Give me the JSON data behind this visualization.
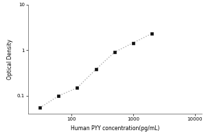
{
  "x_values": [
    31.25,
    62.5,
    125,
    250,
    500,
    1000,
    2000
  ],
  "y_values": [
    0.055,
    0.1,
    0.15,
    0.38,
    0.9,
    1.45,
    2.3
  ],
  "xlabel": "Human PYY concentration(pg/mL)",
  "ylabel": "Optical Density",
  "xlim": [
    20,
    13000
  ],
  "ylim": [
    0.04,
    10
  ],
  "x_ticks": [
    100,
    1000,
    10000
  ],
  "x_tick_labels": [
    "100",
    "1000",
    "10000"
  ],
  "y_ticks": [
    0.1,
    1,
    10
  ],
  "y_tick_labels": [
    "0.1",
    "1",
    "10"
  ],
  "line_color": "#aaaaaa",
  "marker_color": "#111111",
  "background_color": "#ffffff",
  "xlabel_fontsize": 5.5,
  "ylabel_fontsize": 5.5,
  "tick_fontsize": 5.0
}
